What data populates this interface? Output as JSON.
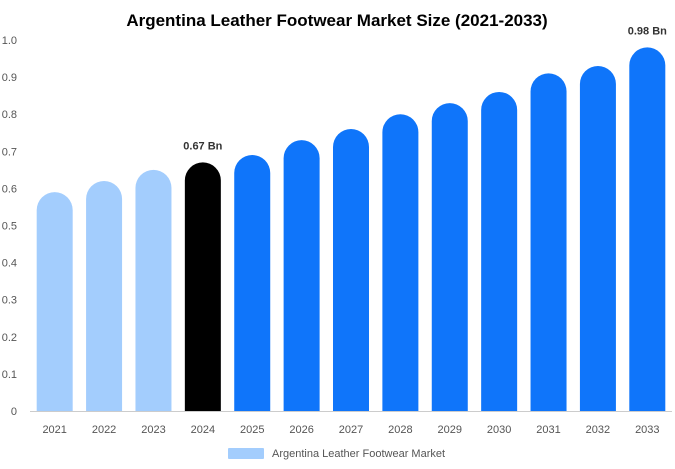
{
  "chart_data": {
    "type": "bar",
    "title": "Argentina Leather Footwear Market Size (2021-2033)",
    "categories": [
      "2021",
      "2022",
      "2023",
      "2024",
      "2025",
      "2026",
      "2027",
      "2028",
      "2029",
      "2030",
      "2031",
      "2032",
      "2033"
    ],
    "series": [
      {
        "name": "Argentina Leather Footwear Market",
        "values": [
          0.59,
          0.62,
          0.65,
          0.67,
          0.69,
          0.73,
          0.76,
          0.8,
          0.83,
          0.86,
          0.91,
          0.93,
          0.98
        ]
      }
    ],
    "bar_colors": [
      "#a3cdfd",
      "#a3cdfd",
      "#a3cdfd",
      "#000000",
      "#0f75fa",
      "#0f75fa",
      "#0f75fa",
      "#0f75fa",
      "#0f75fa",
      "#0f75fa",
      "#0f75fa",
      "#0f75fa",
      "#0f75fa"
    ],
    "data_labels": [
      {
        "category": "2024",
        "text": "0.67 Bn"
      },
      {
        "category": "2033",
        "text": "0.98 Bn"
      }
    ],
    "y_ticks": [
      "0",
      "0.1",
      "0.2",
      "0.3",
      "0.4",
      "0.5",
      "0.6",
      "0.7",
      "0.8",
      "0.9",
      "1.0"
    ],
    "ylim": [
      0,
      1.0
    ],
    "xlabel": "",
    "ylabel": "",
    "grid": false,
    "legend": {
      "label": "Argentina Leather Footwear Market",
      "color": "#a3cdfd",
      "position": "bottom-center"
    },
    "colors": {
      "axis": "#cccccc",
      "tick_text": "#555555"
    }
  }
}
